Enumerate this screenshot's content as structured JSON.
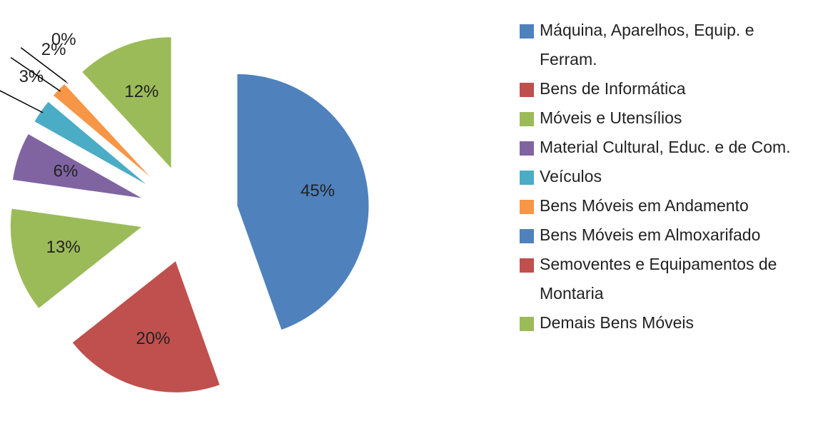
{
  "chart_data": {
    "type": "pie",
    "categories": [
      "Máquina, Aparelhos, Equip. e Ferram.",
      "Bens de Informática",
      "Móveis e Utensílios",
      "Material Cultural, Educ. e de Com.",
      "Veículos",
      "Bens Móveis em Andamento",
      "Bens Móveis em Almoxarifado",
      "Semoventes e Equipamentos de Montaria",
      "Demais Bens Móveis"
    ],
    "values": [
      45,
      20,
      13,
      6,
      3,
      2,
      0,
      0,
      12
    ],
    "value_labels": [
      "45%",
      "20%",
      "13%",
      "6%",
      "3%",
      "2%",
      "0%",
      null,
      "12%"
    ],
    "colors": [
      "#4f81bd",
      "#c0504d",
      "#9bbb59",
      "#8064a2",
      "#4bacc6",
      "#f79646",
      "#4f81bd",
      "#c0504d",
      "#9bbb59"
    ],
    "legend": "right"
  }
}
